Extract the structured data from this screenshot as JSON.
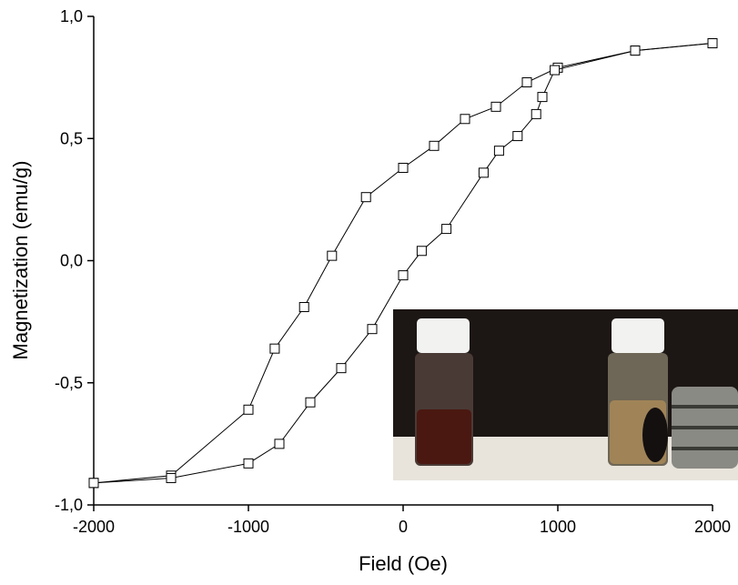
{
  "chart_data": {
    "type": "line",
    "xlabel": "Field (Oe)",
    "ylabel": "Magnetization (emu/g)",
    "xlim": [
      -2000,
      2000
    ],
    "ylim": [
      -1,
      1
    ],
    "xticks": [
      -2000,
      -1000,
      0,
      1000,
      2000
    ],
    "yticks": [
      {
        "value": -1,
        "label": "-1,0"
      },
      {
        "value": -0.5,
        "label": "-0,5"
      },
      {
        "value": 0,
        "label": "0,0"
      },
      {
        "value": 0.5,
        "label": "0,5"
      },
      {
        "value": 1,
        "label": "1,0"
      }
    ],
    "marker": "square",
    "series": [
      {
        "color": "#000000",
        "x": [
          2000,
          1500,
          1000,
          800,
          600,
          400,
          200,
          0,
          -240,
          -460,
          -640,
          -830,
          -1000,
          -1500,
          -2000
        ],
        "values": [
          0.89,
          0.86,
          0.79,
          0.73,
          0.63,
          0.58,
          0.47,
          0.38,
          0.26,
          0.02,
          -0.19,
          -0.36,
          -0.61,
          -0.88,
          -0.91
        ]
      },
      {
        "color": "#000000",
        "x": [
          -2000,
          -1500,
          -1000,
          -800,
          -600,
          -400,
          -200,
          0,
          120,
          280,
          520,
          620,
          740,
          860,
          900,
          980,
          1500,
          2000
        ],
        "values": [
          -0.91,
          -0.89,
          -0.83,
          -0.75,
          -0.58,
          -0.44,
          -0.28,
          -0.06,
          0.04,
          0.13,
          0.36,
          0.45,
          0.51,
          0.6,
          0.67,
          0.78,
          0.86,
          0.89
        ]
      }
    ]
  }
}
